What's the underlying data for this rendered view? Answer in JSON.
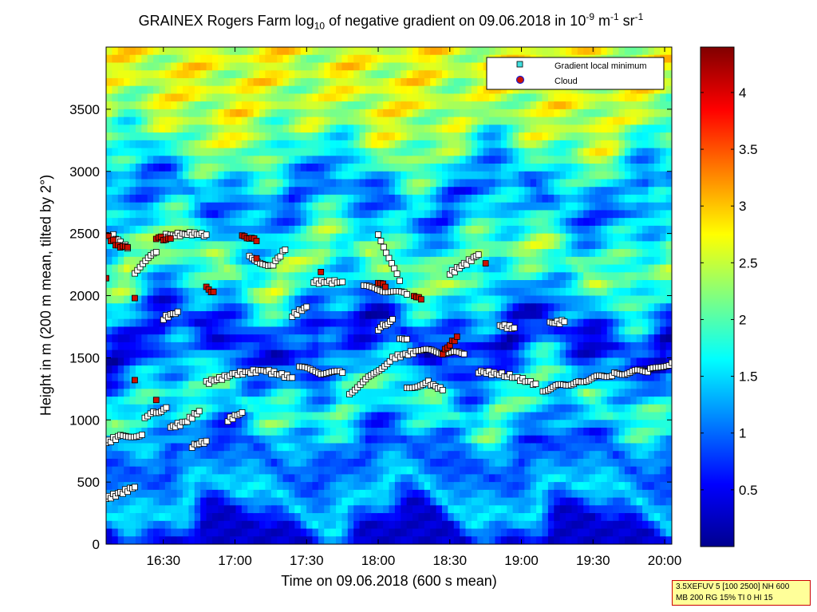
{
  "title": {
    "prefix": "GRAINEX Rogers Farm log",
    "sub": "10",
    "middle": " of negative gradient on 09.06.2018 in 10",
    "exp1": "-9",
    "unit1": " m",
    "exp2": "-1",
    "unit2": " sr",
    "exp3": "-1"
  },
  "infobox": {
    "line1": "3.5XEFUV 5 [100 2500] NH 600",
    "line2": "MB 200 RG 15% TI 0 HI 15"
  },
  "colors": {
    "colormap": [
      "#00008f",
      "#0000ff",
      "#0080ff",
      "#00ffff",
      "#80ff80",
      "#ffff00",
      "#ff8000",
      "#ff0000",
      "#800000"
    ],
    "min_marker_fill": "#ffffff",
    "min_marker_legend_fill": "#40e0e0",
    "cloud_marker": "#cc1100"
  },
  "chart_data": {
    "type": "heatmap",
    "xlabel": "Time on 09.06.2018 (600 s mean)",
    "ylabel": "Height in m (200 m mean, tilted by 2°)",
    "x_ticks": [
      "16:30",
      "17:00",
      "17:30",
      "18:00",
      "18:30",
      "19:00",
      "19:30",
      "20:00"
    ],
    "x_tick_hours": [
      16.5,
      17.0,
      17.5,
      18.0,
      18.5,
      19.0,
      19.5,
      20.0
    ],
    "xlim_hours": [
      16.1,
      20.05
    ],
    "y_ticks": [
      0,
      500,
      1000,
      1500,
      2000,
      2500,
      3000,
      3500
    ],
    "ylim": [
      0,
      4000
    ],
    "colorbar": {
      "ticks": [
        0.5,
        1,
        1.5,
        2,
        2.5,
        3,
        3.5,
        4
      ],
      "tick_labels": [
        "0.5",
        "1",
        "1.5",
        "2",
        "2.5",
        "3",
        "3.5",
        "4"
      ],
      "range": [
        0,
        4.4
      ]
    },
    "legend": {
      "position": "top-right",
      "entries": [
        "Gradient local minimum",
        "Cloud"
      ]
    },
    "layers": [
      {
        "height": 100,
        "value": 0.3
      },
      {
        "height": 350,
        "value": 1.6
      },
      {
        "height": 700,
        "value": 0.8
      },
      {
        "height": 1150,
        "value": 1.9
      },
      {
        "height": 1650,
        "value": 0.5
      },
      {
        "height": 2250,
        "value": 2.2
      },
      {
        "height": 2800,
        "value": 1.0
      },
      {
        "height": 3300,
        "value": 2.3
      },
      {
        "height": 3700,
        "value": 2.6
      }
    ],
    "series": [
      {
        "name": "Gradient local minimum",
        "tracks": [
          {
            "x": [
              16.1,
              16.2,
              16.3
            ],
            "y": [
              370,
              410,
              460
            ]
          },
          {
            "x": [
              16.1,
              16.2,
              16.35
            ],
            "y": [
              820,
              870,
              880
            ]
          },
          {
            "x": [
              16.37,
              16.45,
              16.52
            ],
            "y": [
              1030,
              1060,
              1100
            ]
          },
          {
            "x": [
              16.55,
              16.65,
              16.75
            ],
            "y": [
              940,
              980,
              1070
            ]
          },
          {
            "x": [
              16.7,
              16.8
            ],
            "y": [
              790,
              830
            ]
          },
          {
            "x": [
              16.8,
              17.0,
              17.2,
              17.4
            ],
            "y": [
              1300,
              1370,
              1400,
              1340
            ]
          },
          {
            "x": [
              17.45,
              17.6,
              17.75
            ],
            "y": [
              1420,
              1380,
              1380
            ]
          },
          {
            "x": [
              17.8,
              17.95,
              18.1,
              18.3,
              18.6
            ],
            "y": [
              1220,
              1350,
              1500,
              1560,
              1530
            ]
          },
          {
            "x": [
              18.2,
              18.35,
              18.45
            ],
            "y": [
              1260,
              1300,
              1240
            ]
          },
          {
            "x": [
              18.7,
              18.9,
              19.1
            ],
            "y": [
              1390,
              1360,
              1290
            ]
          },
          {
            "x": [
              19.15,
              19.4,
              19.65,
              19.9,
              20.05
            ],
            "y": [
              1240,
              1310,
              1370,
              1400,
              1460
            ]
          },
          {
            "x": [
              16.95,
              17.05
            ],
            "y": [
              1000,
              1060
            ]
          },
          {
            "x": [
              17.1,
              17.25,
              17.35
            ],
            "y": [
              2320,
              2230,
              2370
            ]
          },
          {
            "x": [
              17.55,
              17.75
            ],
            "y": [
              2110,
              2110
            ]
          },
          {
            "x": [
              17.9,
              18.05,
              18.2
            ],
            "y": [
              2070,
              2040,
              2010
            ]
          },
          {
            "x": [
              18.0,
              18.05,
              18.1
            ],
            "y": [
              1730,
              1770,
              1810
            ]
          },
          {
            "x": [
              18.15,
              18.2
            ],
            "y": [
              1640,
              1650
            ]
          },
          {
            "x": [
              18.5,
              18.6,
              18.7
            ],
            "y": [
              2180,
              2250,
              2330
            ]
          },
          {
            "x": [
              18.85,
              18.95
            ],
            "y": [
              1760,
              1740
            ]
          },
          {
            "x": [
              16.5,
              16.6
            ],
            "y": [
              1820,
              1870
            ]
          },
          {
            "x": [
              16.5,
              16.6,
              16.7,
              16.8
            ],
            "y": [
              2480,
              2490,
              2500,
              2490
            ]
          },
          {
            "x": [
              16.3,
              16.45
            ],
            "y": [
              2190,
              2350
            ]
          },
          {
            "x": [
              17.4,
              17.5
            ],
            "y": [
              1840,
              1910
            ]
          },
          {
            "x": [
              18.0,
              18.15
            ],
            "y": [
              2500,
              2120
            ]
          },
          {
            "x": [
              19.2,
              19.3
            ],
            "y": [
              1780,
              1790
            ]
          },
          {
            "x": [
              16.15,
              16.25
            ],
            "y": [
              2480,
              2380
            ]
          }
        ]
      },
      {
        "name": "Cloud",
        "tracks": [
          {
            "x": [
              16.1,
              16.2,
              16.25
            ],
            "y": [
              2490,
              2380,
              2390
            ]
          },
          {
            "x": [
              16.45,
              16.5,
              16.55
            ],
            "y": [
              2460,
              2460,
              2460
            ]
          },
          {
            "x": [
              16.8,
              16.85
            ],
            "y": [
              2060,
              2030
            ]
          },
          {
            "x": [
              17.05,
              17.1,
              17.15
            ],
            "y": [
              2470,
              2460,
              2440
            ]
          },
          {
            "x": [
              18.0,
              18.05
            ],
            "y": [
              2110,
              2070
            ]
          },
          {
            "x": [
              18.25,
              18.3
            ],
            "y": [
              2010,
              1970
            ]
          },
          {
            "x": [
              18.45,
              18.55
            ],
            "y": [
              1540,
              1670
            ]
          },
          {
            "x": [
              16.1
            ],
            "y": [
              2140
            ]
          },
          {
            "x": [
              16.3
            ],
            "y": [
              1980
            ]
          },
          {
            "x": [
              16.45
            ],
            "y": [
              1160
            ]
          },
          {
            "x": [
              16.3
            ],
            "y": [
              1320
            ]
          },
          {
            "x": [
              17.15
            ],
            "y": [
              2300
            ]
          },
          {
            "x": [
              17.6
            ],
            "y": [
              2190
            ]
          },
          {
            "x": [
              18.75
            ],
            "y": [
              2260
            ]
          }
        ]
      }
    ]
  }
}
